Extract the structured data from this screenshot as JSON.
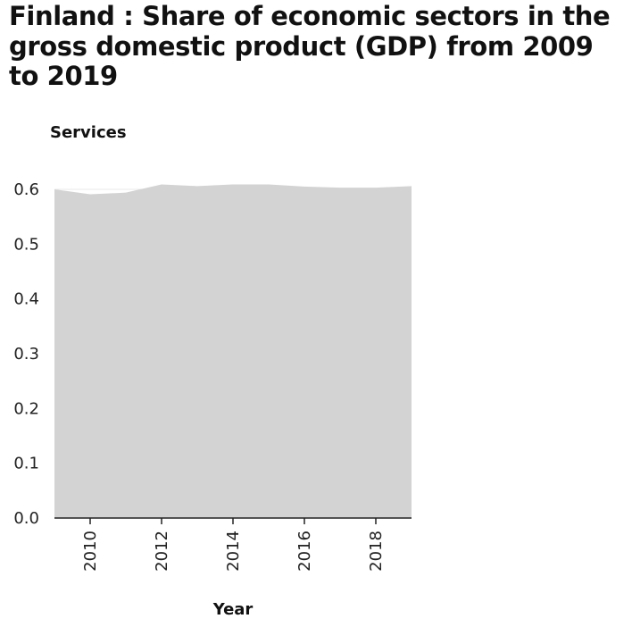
{
  "chart_data": {
    "type": "area",
    "title": "Finland : Share of economic sectors in the gross domestic product (GDP) from 2009 to 2019",
    "ylabel": "Services",
    "xlabel": "Year",
    "x": [
      2009,
      2010,
      2011,
      2012,
      2013,
      2014,
      2015,
      2016,
      2017,
      2018,
      2019
    ],
    "series": [
      {
        "name": "",
        "values": [
          0.6,
          0.591,
          0.594,
          0.609,
          0.606,
          0.609,
          0.609,
          0.605,
          0.603,
          0.603,
          0.606
        ]
      }
    ],
    "xlim": [
      2009,
      2019
    ],
    "ylim": [
      0,
      0.6
    ],
    "xticks": [
      2010,
      2012,
      2014,
      2016,
      2018
    ],
    "xtick_labels": [
      "2010",
      "2012",
      "2014",
      "2016",
      "2018"
    ],
    "yticks": [
      0,
      0.1,
      0.2,
      0.3,
      0.4,
      0.5,
      0.6
    ],
    "ytick_labels": [
      "0.0",
      "0.1",
      "0.2",
      "0.3",
      "0.4",
      "0.5",
      "0.6"
    ],
    "grid": "horizontal",
    "fill_color": "#d3d3d3",
    "grid_color": "#e8e8e8",
    "axis_color": "#222222"
  }
}
